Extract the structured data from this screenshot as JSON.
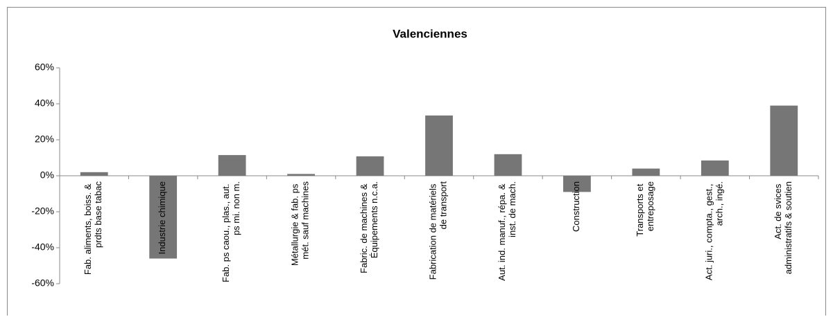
{
  "chart_data": {
    "type": "bar",
    "title": "Valenciennes",
    "categories": [
      "Fab. aliments, boiss. & prdts base tabac",
      "Industrie chimique",
      "Fab. ps caou., plas., aut. ps mi. non m.",
      "Métallurgie & fab. ps mét. sauf machines",
      "Fabric. de machines & Équipements n.c.a.",
      "Fabrication de matériels de transport",
      "Aut. ind. manuf., répa. & inst. de mach.",
      "Construction",
      "Transports et entreposage",
      "Act. juri., compta., gest., arch., ingé.",
      "Act. de svices administratifs & soutien"
    ],
    "values": [
      2,
      -46,
      11.5,
      1,
      10.8,
      33.5,
      12,
      -9,
      4,
      8.5,
      39
    ],
    "color": "#767676",
    "ylim": [
      -60,
      60
    ],
    "yticks": [
      {
        "value": -60,
        "label": "-60%"
      },
      {
        "value": -40,
        "label": "-40%"
      },
      {
        "value": -20,
        "label": "-20%"
      },
      {
        "value": 0,
        "label": "0%"
      },
      {
        "value": 20,
        "label": "20%"
      },
      {
        "value": 40,
        "label": "40%"
      },
      {
        "value": 60,
        "label": "60%"
      }
    ],
    "grid": false
  }
}
